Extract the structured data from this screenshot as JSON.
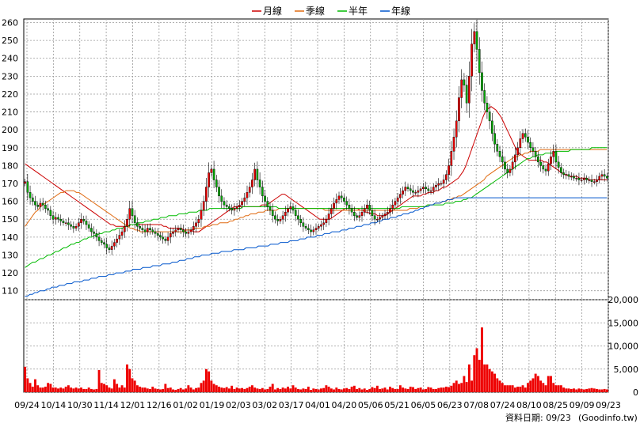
{
  "chart_data": {
    "type": "candlestick",
    "title": "",
    "legend": {
      "placement": "top-center",
      "entries": [
        {
          "label": "月線",
          "color": "#cc0000"
        },
        {
          "label": "季線",
          "color": "#e06a10"
        },
        {
          "label": "半年",
          "color": "#00bb00"
        },
        {
          "label": "年線",
          "color": "#0055cc"
        }
      ]
    },
    "price_axis": {
      "range": [
        105,
        262
      ],
      "ticks": [
        110,
        120,
        130,
        140,
        150,
        160,
        170,
        180,
        190,
        200,
        210,
        220,
        230,
        240,
        250,
        260
      ],
      "tick_labels": [
        "110",
        "120",
        "130",
        "140",
        "150",
        "160",
        "170",
        "180",
        "190",
        "200",
        "210",
        "220",
        "230",
        "240",
        "250",
        "260"
      ]
    },
    "volume_axis": {
      "range": [
        0,
        20000
      ],
      "ticks": [
        0,
        5000,
        10000,
        15000,
        20000
      ],
      "tick_labels": [
        "0",
        "5,000",
        "10,000",
        "15,000",
        "20,000"
      ]
    },
    "x_ticks": [
      "09/24",
      "10/14",
      "10/30",
      "11/14",
      "12/01",
      "12/16",
      "01/02",
      "01/19",
      "02/03",
      "03/02",
      "03/17",
      "04/01",
      "04/20",
      "05/06",
      "05/21",
      "06/05",
      "06/23",
      "07/08",
      "07/24",
      "08/10",
      "08/25",
      "09/09",
      "09/23"
    ],
    "closes": [
      171,
      165,
      162,
      160,
      158,
      157,
      159,
      158,
      156,
      155,
      152,
      150,
      151,
      150,
      149,
      148,
      148,
      147,
      146,
      145,
      146,
      148,
      150,
      149,
      147,
      145,
      143,
      142,
      140,
      138,
      137,
      136,
      134,
      133,
      135,
      137,
      139,
      141,
      143,
      146,
      150,
      156,
      152,
      148,
      146,
      145,
      144,
      143,
      145,
      144,
      143,
      142,
      141,
      140,
      139,
      138,
      140,
      142,
      143,
      144,
      145,
      144,
      143,
      142,
      143,
      144,
      146,
      148,
      150,
      155,
      160,
      168,
      176,
      178,
      172,
      168,
      163,
      160,
      158,
      157,
      156,
      155,
      156,
      157,
      158,
      160,
      162,
      165,
      168,
      172,
      178,
      172,
      168,
      163,
      160,
      157,
      155,
      152,
      150,
      149,
      150,
      152,
      154,
      156,
      157,
      155,
      152,
      150,
      148,
      146,
      145,
      144,
      143,
      144,
      145,
      146,
      147,
      148,
      150,
      153,
      156,
      159,
      161,
      163,
      162,
      160,
      158,
      156,
      154,
      152,
      151,
      152,
      154,
      156,
      158,
      155,
      152,
      150,
      150,
      151,
      152,
      153,
      154,
      156,
      158,
      160,
      162,
      164,
      166,
      168,
      167,
      166,
      165,
      165,
      166,
      167,
      168,
      167,
      166,
      166,
      168,
      169,
      170,
      170,
      172,
      175,
      180,
      188,
      196,
      205,
      218,
      228,
      225,
      215,
      230,
      248,
      255,
      245,
      232,
      222,
      215,
      210,
      205,
      198,
      192,
      188,
      185,
      182,
      178,
      176,
      178,
      182,
      186,
      190,
      195,
      198,
      196,
      193,
      190,
      188,
      185,
      182,
      180,
      178,
      177,
      181,
      185,
      188,
      182,
      179,
      176,
      175,
      175,
      174,
      174,
      173,
      173,
      172,
      172,
      173,
      172,
      172,
      171,
      171,
      172,
      174,
      175,
      174,
      173
    ],
    "volumes": [
      5500,
      3000,
      2000,
      1200,
      2800,
      1500,
      1000,
      1000,
      1200,
      2000,
      1800,
      1000,
      1000,
      800,
      1000,
      800,
      1200,
      1500,
      1000,
      800,
      1000,
      800,
      1000,
      700,
      700,
      1000,
      700,
      600,
      700,
      4800,
      2000,
      1800,
      1500,
      1000,
      800,
      2800,
      1800,
      1000,
      1500,
      1000,
      6000,
      5000,
      3000,
      2500,
      1500,
      1200,
      1000,
      1000,
      800,
      700,
      1200,
      800,
      700,
      600,
      700,
      1800,
      900,
      1000,
      600,
      500,
      700,
      900,
      600,
      800,
      1500,
      1000,
      600,
      900,
      1000,
      2000,
      2500,
      5000,
      4500,
      2500,
      1800,
      1500,
      1200,
      1000,
      900,
      1100,
      800,
      1400,
      700,
      1000,
      800,
      900,
      700,
      900,
      1200,
      1500,
      1000,
      800,
      700,
      900,
      600,
      700,
      1200,
      1800,
      600,
      900,
      700,
      1000,
      800,
      1200,
      800,
      1500,
      1000,
      700,
      600,
      800,
      700,
      1200,
      500,
      800,
      700,
      600,
      800,
      900,
      1500,
      1200,
      800,
      600,
      1000,
      700,
      600,
      800,
      900,
      700,
      1200,
      1400,
      700,
      900,
      600,
      800,
      500,
      700,
      1100,
      900,
      1400,
      700,
      800,
      1000,
      600,
      1200,
      900,
      700,
      700,
      1500,
      1000,
      800,
      700,
      1200,
      1100,
      700,
      900,
      1000,
      600,
      700,
      1100,
      1000,
      700,
      700,
      900,
      1000,
      1000,
      1200,
      1100,
      1400,
      2000,
      2500,
      1800,
      2000,
      3500,
      2200,
      6000,
      2500,
      8000,
      9500,
      7000,
      14000,
      6000,
      6000,
      5000,
      4500,
      4000,
      3000,
      2500,
      2000,
      1500,
      1500,
      1500,
      1500,
      1000,
      1200,
      1200,
      1500,
      1000,
      2000,
      2500,
      3000,
      4000,
      3500,
      2500,
      2000,
      1500,
      3500,
      3500,
      2000,
      1500,
      1500,
      1500,
      1000,
      800,
      800,
      700,
      800,
      600,
      800,
      700,
      600,
      700,
      800,
      900,
      800,
      700,
      600,
      600,
      700,
      600
    ],
    "ma_month": [
      181,
      180,
      179,
      178,
      177,
      176,
      175,
      174,
      173,
      172,
      171,
      170,
      169,
      168,
      167,
      166,
      165,
      164,
      163,
      162,
      161,
      160,
      159,
      158,
      157,
      156,
      155,
      154,
      153,
      152,
      151,
      150,
      149,
      148,
      147,
      147,
      146,
      146,
      146,
      146,
      146,
      146,
      147,
      147,
      147,
      147,
      147,
      147,
      147,
      147,
      147,
      147,
      147,
      147,
      147,
      146,
      146,
      145,
      145,
      145,
      145,
      145,
      145,
      144,
      144,
      144,
      144,
      143,
      143,
      143,
      144,
      145,
      146,
      147,
      148,
      149,
      150,
      151,
      152,
      153,
      154,
      155,
      156,
      157,
      157,
      157,
      157,
      157,
      157,
      157,
      157,
      157,
      157,
      157,
      158,
      158,
      158,
      159,
      160,
      161,
      162,
      163,
      164,
      164,
      163,
      162,
      161,
      160,
      159,
      158,
      157,
      156,
      155,
      154,
      153,
      152,
      151,
      150,
      150,
      150,
      150,
      150,
      151,
      152,
      153,
      154,
      155,
      156,
      156,
      156,
      156,
      156,
      156,
      155,
      155,
      154,
      154,
      153,
      153,
      153,
      152,
      152,
      152,
      152,
      153,
      154,
      155,
      156,
      157,
      158,
      159,
      160,
      161,
      162,
      163,
      163,
      163,
      163,
      164,
      164,
      165,
      165,
      165,
      166,
      166,
      167,
      168,
      168,
      169,
      170,
      171,
      172,
      173,
      175,
      177,
      180,
      184,
      188,
      192,
      196,
      200,
      204,
      208,
      211,
      212,
      213,
      212,
      211,
      209,
      207,
      204,
      201,
      198,
      195,
      192,
      189,
      187,
      186,
      185,
      184,
      183,
      183,
      183,
      183,
      183,
      183,
      182,
      182,
      181,
      180,
      179,
      178,
      177,
      176,
      175,
      175,
      174,
      174,
      174,
      174,
      173,
      173,
      173,
      173,
      172,
      172,
      172,
      172,
      172,
      172,
      172,
      172
    ],
    "ma_quarter": [
      146,
      148,
      150,
      152,
      154,
      155,
      157,
      158,
      159,
      160,
      161,
      162,
      163,
      164,
      165,
      165,
      166,
      166,
      166,
      166,
      165,
      165,
      164,
      163,
      162,
      161,
      160,
      159,
      158,
      157,
      156,
      155,
      154,
      153,
      152,
      151,
      150,
      149,
      148,
      147,
      146,
      145,
      145,
      144,
      144,
      143,
      143,
      143,
      143,
      143,
      143,
      143,
      143,
      143,
      143,
      143,
      143,
      143,
      143,
      143,
      143,
      143,
      143,
      144,
      144,
      144,
      145,
      145,
      145,
      145,
      146,
      146,
      146,
      147,
      147,
      147,
      148,
      148,
      148,
      148,
      149,
      149,
      150,
      150,
      151,
      151,
      152,
      152,
      153,
      153,
      153,
      154,
      154,
      154,
      155,
      155,
      155,
      155,
      155,
      156,
      156,
      156,
      156,
      156,
      156,
      156,
      156,
      156,
      156,
      156,
      156,
      156,
      156,
      156,
      156,
      156,
      156,
      155,
      155,
      155,
      155,
      155,
      155,
      155,
      155,
      155,
      155,
      155,
      155,
      155,
      155,
      155,
      155,
      155,
      155,
      155,
      155,
      155,
      155,
      155,
      155,
      155,
      155,
      155,
      155,
      155,
      155,
      155,
      155,
      155,
      156,
      156,
      156,
      156,
      157,
      157,
      157,
      158,
      158,
      158,
      159,
      159,
      159,
      160,
      160,
      161,
      161,
      162,
      162,
      163,
      163,
      164,
      165,
      166,
      167,
      168,
      169,
      170,
      171,
      172,
      174,
      175,
      176,
      177,
      178,
      179,
      180,
      181,
      182,
      183,
      184,
      185,
      185,
      186,
      186,
      187,
      187,
      188,
      188,
      188,
      188,
      189,
      189,
      189,
      189,
      189,
      189,
      189,
      189,
      189,
      189,
      189,
      189,
      189,
      189,
      189,
      189,
      189,
      189,
      189,
      189,
      189,
      189,
      189,
      189,
      189,
      189,
      189
    ],
    "ma_half": [
      123,
      124,
      125,
      126,
      126,
      127,
      128,
      128,
      129,
      130,
      130,
      131,
      132,
      132,
      133,
      134,
      134,
      135,
      136,
      136,
      137,
      137,
      138,
      139,
      139,
      140,
      140,
      141,
      141,
      142,
      142,
      143,
      143,
      143,
      144,
      144,
      145,
      145,
      145,
      146,
      146,
      147,
      147,
      147,
      148,
      148,
      148,
      149,
      149,
      149,
      150,
      150,
      150,
      151,
      151,
      151,
      152,
      152,
      152,
      152,
      153,
      153,
      153,
      153,
      154,
      154,
      154,
      154,
      155,
      155,
      155,
      155,
      156,
      156,
      156,
      156,
      156,
      156,
      156,
      156,
      156,
      156,
      156,
      156,
      156,
      157,
      157,
      157,
      157,
      157,
      157,
      157,
      157,
      157,
      157,
      157,
      157,
      157,
      157,
      156,
      156,
      156,
      156,
      156,
      156,
      156,
      156,
      156,
      156,
      156,
      156,
      156,
      156,
      156,
      156,
      156,
      156,
      156,
      156,
      156,
      156,
      156,
      156,
      156,
      156,
      156,
      156,
      156,
      156,
      156,
      156,
      156,
      156,
      156,
      156,
      156,
      156,
      156,
      156,
      156,
      156,
      156,
      156,
      156,
      156,
      156,
      156,
      157,
      157,
      157,
      157,
      157,
      157,
      157,
      157,
      157,
      157,
      158,
      158,
      158,
      158,
      158,
      158,
      158,
      159,
      159,
      159,
      159,
      160,
      160,
      160,
      161,
      161,
      162,
      162,
      163,
      164,
      165,
      166,
      167,
      168,
      169,
      170,
      171,
      172,
      173,
      174,
      175,
      176,
      177,
      178,
      179,
      180,
      181,
      182,
      183,
      184,
      184,
      185,
      185,
      186,
      186,
      186,
      187,
      187,
      187,
      187,
      188,
      188,
      188,
      188,
      188,
      188,
      189,
      189,
      189,
      189,
      189,
      189,
      189,
      189,
      190,
      190,
      190,
      190,
      190,
      190,
      190
    ],
    "ma_year": [
      107,
      107,
      108,
      108,
      109,
      109,
      110,
      110,
      110,
      111,
      111,
      112,
      112,
      112,
      113,
      113,
      113,
      114,
      114,
      114,
      115,
      115,
      115,
      115,
      116,
      116,
      116,
      117,
      117,
      117,
      118,
      118,
      118,
      118,
      119,
      119,
      119,
      120,
      120,
      120,
      120,
      121,
      121,
      121,
      122,
      122,
      122,
      122,
      123,
      123,
      123,
      123,
      124,
      124,
      124,
      124,
      125,
      125,
      125,
      125,
      126,
      126,
      126,
      127,
      127,
      127,
      128,
      128,
      128,
      129,
      129,
      129,
      130,
      130,
      130,
      130,
      131,
      131,
      131,
      131,
      132,
      132,
      132,
      132,
      132,
      133,
      133,
      133,
      133,
      133,
      134,
      134,
      134,
      134,
      134,
      135,
      135,
      135,
      135,
      135,
      136,
      136,
      136,
      136,
      137,
      137,
      137,
      137,
      138,
      138,
      138,
      138,
      139,
      139,
      139,
      140,
      140,
      140,
      140,
      141,
      141,
      141,
      142,
      142,
      142,
      143,
      143,
      143,
      143,
      144,
      144,
      144,
      145,
      145,
      145,
      146,
      146,
      146,
      147,
      147,
      147,
      148,
      148,
      148,
      149,
      149,
      150,
      150,
      150,
      151,
      151,
      151,
      152,
      152,
      153,
      153,
      153,
      154,
      154,
      155,
      155,
      156,
      156,
      157,
      157,
      158,
      158,
      159,
      159,
      159,
      160,
      160,
      161,
      161,
      161,
      162,
      162,
      162,
      162,
      162,
      162,
      162,
      162,
      162,
      162,
      162,
      162,
      162,
      162,
      162,
      162,
      162,
      162,
      162,
      162,
      162,
      162,
      162,
      162,
      162,
      162,
      162,
      162,
      162,
      162,
      162,
      162,
      162,
      162,
      162,
      162,
      162,
      162,
      162,
      162,
      162,
      162,
      162,
      162,
      162,
      162,
      162,
      162,
      162,
      162,
      162,
      162,
      162,
      162,
      162,
      162,
      162,
      162,
      162,
      162,
      162,
      162,
      162
    ]
  },
  "footer": {
    "date_label": "資料日期: 09/23",
    "source": "(Goodinfo.tw)"
  }
}
